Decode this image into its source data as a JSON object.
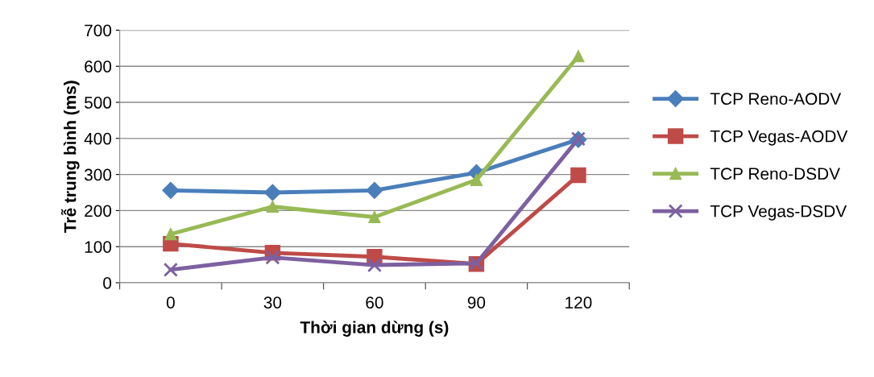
{
  "chart_data": {
    "type": "line",
    "xlabel": "Thời gian dừng (s)",
    "ylabel": "Trễ trung bình (ms)",
    "categories": [
      "0",
      "30",
      "60",
      "90",
      "120"
    ],
    "series": [
      {
        "name": "TCP Reno-AODV",
        "color": "#4a7ebb",
        "marker": "diamond",
        "values": [
          256,
          250,
          256,
          305,
          397
        ]
      },
      {
        "name": "TCP Vegas-AODV",
        "color": "#be4b48",
        "marker": "square",
        "values": [
          108,
          83,
          72,
          52,
          298
        ]
      },
      {
        "name": "TCP Reno-DSDV",
        "color": "#98b954",
        "marker": "triangle",
        "values": [
          135,
          211,
          182,
          285,
          628
        ]
      },
      {
        "name": "TCP Vegas-DSDV",
        "color": "#7d60a0",
        "marker": "cross",
        "values": [
          36,
          70,
          49,
          54,
          399
        ]
      }
    ],
    "ylim": [
      0,
      700
    ],
    "yticks": [
      0,
      100,
      200,
      300,
      400,
      500,
      600,
      700
    ],
    "grid": "y",
    "legend": "right",
    "line_style": "solid"
  }
}
